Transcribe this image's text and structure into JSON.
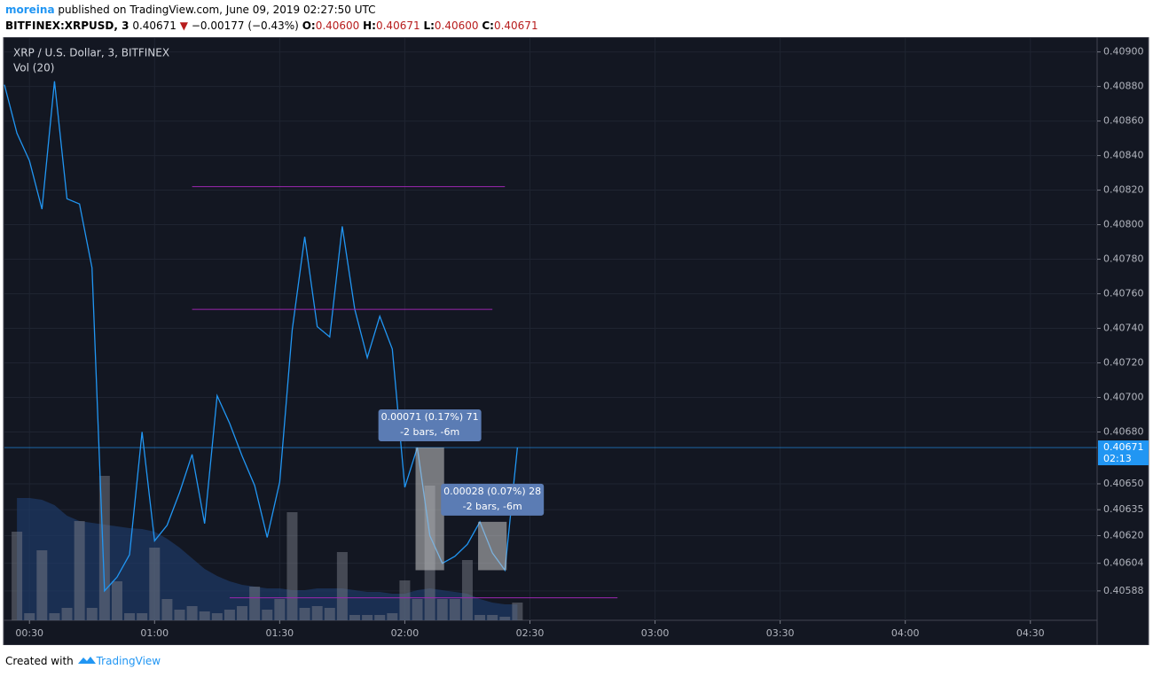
{
  "header": {
    "user": "moreina",
    "published": "published on TradingView.com, June 09, 2019 02:27:50 UTC",
    "symbol": "BITFINEX:XRPUSD, 3",
    "last": "0.40671",
    "arrow": "▼",
    "change": "−0.00177 (−0.43%)",
    "o_label": "O:",
    "o": "0.40600",
    "h_label": "H:",
    "h": "0.40671",
    "l_label": "L:",
    "l": "0.40600",
    "c_label": "C:",
    "c": "0.40671"
  },
  "footer": {
    "created": "Created with",
    "brand": "TradingView"
  },
  "chart_data": {
    "type": "line",
    "title": "XRP / U.S. Dollar, 3, BITFINEX",
    "x": [
      24,
      27,
      30,
      33,
      36,
      39,
      42,
      45,
      48,
      51,
      54,
      57,
      60,
      63,
      66,
      69,
      72,
      75,
      78,
      81,
      84,
      87,
      90,
      93,
      96,
      99,
      102,
      105,
      108,
      111,
      114,
      117,
      120,
      123,
      126,
      129,
      132,
      135,
      138,
      141,
      144,
      147
    ],
    "series": [
      {
        "name": "XRPUSD",
        "color": "#2196f3",
        "values": [
          0.40881,
          0.40853,
          0.40837,
          0.40809,
          0.40883,
          0.40815,
          0.40812,
          0.40775,
          0.40588,
          0.40596,
          0.40609,
          0.4068,
          0.40617,
          0.40626,
          0.40645,
          0.40667,
          0.40627,
          0.40701,
          0.40685,
          0.40666,
          0.40649,
          0.40619,
          0.40651,
          0.40739,
          0.40793,
          0.40741,
          0.40735,
          0.40799,
          0.40751,
          0.40723,
          0.40747,
          0.40728,
          0.40648,
          0.40671,
          0.4062,
          0.40604,
          0.40608,
          0.40615,
          0.40628,
          0.4061,
          0.406,
          0.40671
        ]
      }
    ],
    "xlim": [
      24,
      286
    ],
    "xticks": [
      {
        "value": 30,
        "label": "00:30"
      },
      {
        "value": 60,
        "label": "01:00"
      },
      {
        "value": 90,
        "label": "01:30"
      },
      {
        "value": 120,
        "label": "02:00"
      },
      {
        "value": 150,
        "label": "02:30"
      },
      {
        "value": 180,
        "label": "03:00"
      },
      {
        "value": 210,
        "label": "03:30"
      },
      {
        "value": 240,
        "label": "04:00"
      },
      {
        "value": 270,
        "label": "04:30"
      }
    ],
    "ylim": [
      0.40571,
      0.40908
    ],
    "yticks": [
      {
        "value": 0.409,
        "label": "0.40900"
      },
      {
        "value": 0.4088,
        "label": "0.40880"
      },
      {
        "value": 0.4086,
        "label": "0.40860"
      },
      {
        "value": 0.4084,
        "label": "0.40840"
      },
      {
        "value": 0.4082,
        "label": "0.40820"
      },
      {
        "value": 0.408,
        "label": "0.40800"
      },
      {
        "value": 0.4078,
        "label": "0.40780"
      },
      {
        "value": 0.4076,
        "label": "0.40760"
      },
      {
        "value": 0.4074,
        "label": "0.40740"
      },
      {
        "value": 0.4072,
        "label": "0.40720"
      },
      {
        "value": 0.407,
        "label": "0.40700"
      },
      {
        "value": 0.4068,
        "label": "0.40680"
      },
      {
        "value": 0.4065,
        "label": "0.40650"
      },
      {
        "value": 0.40635,
        "label": "0.40635"
      },
      {
        "value": 0.4062,
        "label": "0.40620"
      },
      {
        "value": 0.40604,
        "label": "0.40604"
      },
      {
        "value": 0.40588,
        "label": "0.40588"
      }
    ],
    "grid": true,
    "price_tag": "0.40671",
    "countdown": "02:13",
    "volume": {
      "name": "Vol (20)",
      "x": [
        27,
        30,
        33,
        36,
        39,
        42,
        45,
        48,
        51,
        54,
        57,
        60,
        63,
        66,
        69,
        72,
        75,
        78,
        81,
        84,
        87,
        90,
        93,
        96,
        99,
        102,
        105,
        108,
        111,
        114,
        117,
        120,
        123,
        126,
        129,
        132,
        135,
        138,
        141,
        144,
        147
      ],
      "values": [
        100,
        8,
        79,
        8,
        14,
        112,
        14,
        163,
        44,
        8,
        8,
        82,
        24,
        12,
        16,
        10,
        8,
        12,
        16,
        38,
        12,
        24,
        122,
        14,
        16,
        14,
        77,
        6,
        6,
        6,
        8,
        45,
        24,
        152,
        24,
        24,
        68,
        6,
        6,
        4,
        20
      ],
      "ma": [
        138,
        138,
        136,
        130,
        118,
        112,
        110,
        108,
        106,
        104,
        103,
        100,
        92,
        82,
        70,
        58,
        50,
        44,
        40,
        38,
        36,
        36,
        34,
        34,
        36,
        36,
        36,
        34,
        32,
        32,
        30,
        30,
        34,
        36,
        34,
        32,
        30,
        24,
        20,
        18,
        18
      ],
      "ylim": [
        0,
        657
      ],
      "color": "#787b86",
      "ma_color": "#1e3a66"
    },
    "levels": [
      {
        "value": 0.40822,
        "x": [
          69,
          144
        ],
        "color": "#9c27b0"
      },
      {
        "value": 0.40751,
        "x": [
          69,
          141
        ],
        "color": "#9c27b0"
      },
      {
        "value": 0.40584,
        "x": [
          78,
          171
        ],
        "color": "#9c27b0"
      }
    ],
    "measures": [
      {
        "x": [
          123,
          129
        ],
        "y": [
          0.40671,
          0.406
        ],
        "label": "0.00071 (0.17%) 71",
        "sublabel": "-2 bars, -6m"
      },
      {
        "x": [
          138,
          144
        ],
        "y": [
          0.40628,
          0.406
        ],
        "label": "0.00028 (0.07%) 28",
        "sublabel": "-2 bars, -6m"
      }
    ]
  }
}
